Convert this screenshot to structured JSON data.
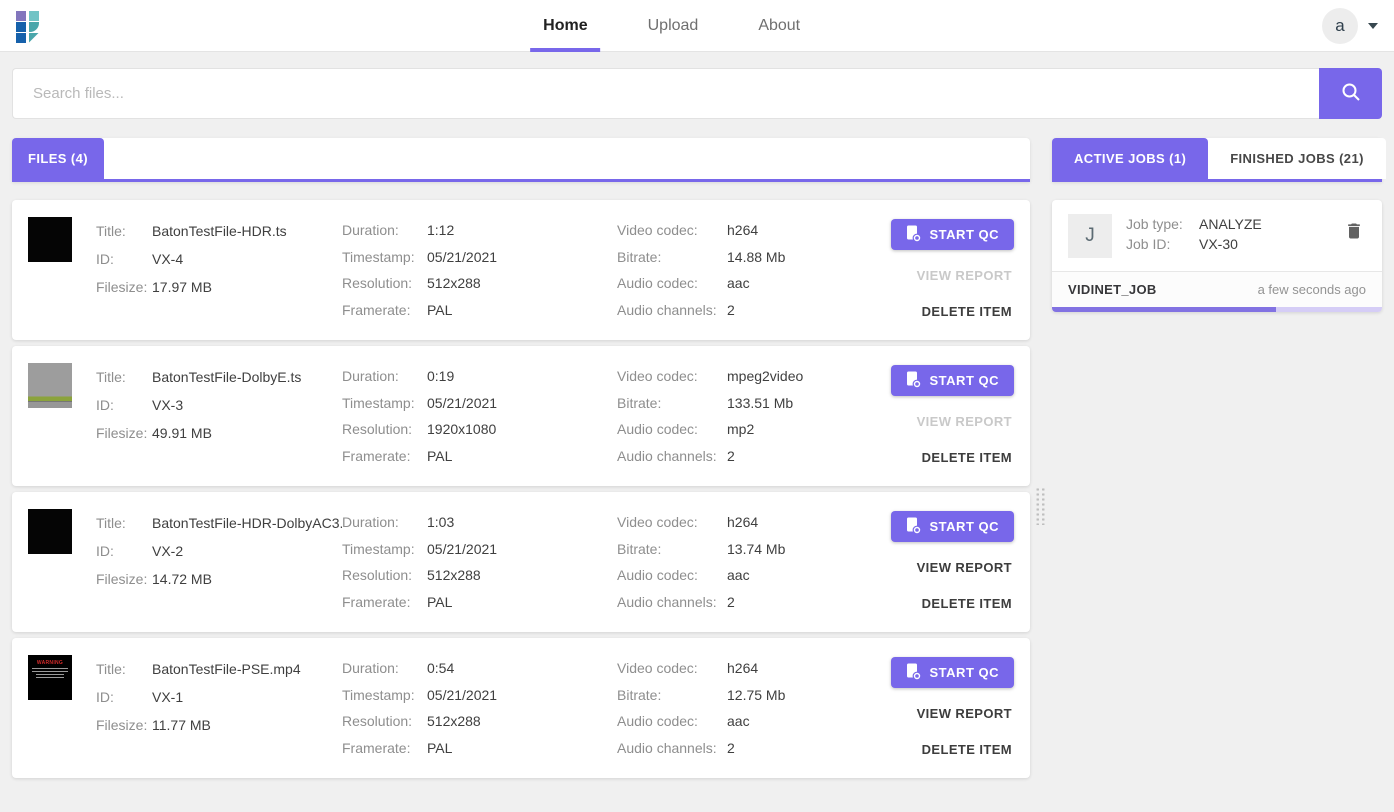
{
  "header": {
    "nav": [
      {
        "label": "Home",
        "active": true
      },
      {
        "label": "Upload",
        "active": false
      },
      {
        "label": "About",
        "active": false
      }
    ],
    "avatar_letter": "a"
  },
  "search": {
    "placeholder": "Search files..."
  },
  "files_panel": {
    "tab_label": "FILES (4)",
    "field_labels": {
      "title": "Title:",
      "id": "ID:",
      "filesize": "Filesize:",
      "duration": "Duration:",
      "timestamp": "Timestamp:",
      "resolution": "Resolution:",
      "framerate": "Framerate:",
      "video_codec": "Video codec:",
      "bitrate": "Bitrate:",
      "audio_codec": "Audio codec:",
      "audio_channels": "Audio channels:"
    },
    "actions": {
      "start_qc": "START QC",
      "view_report": "VIEW REPORT",
      "delete_item": "DELETE ITEM"
    },
    "warning_thumb_text": "WARNING",
    "items": [
      {
        "title": "BatonTestFile-HDR.ts",
        "id": "VX-4",
        "filesize": "17.97 MB",
        "duration": "1:12",
        "timestamp": "05/21/2021",
        "resolution": "512x288",
        "framerate": "PAL",
        "video_codec": "h264",
        "bitrate": "14.88 Mb",
        "audio_codec": "aac",
        "audio_channels": "2",
        "thumb": "black",
        "report_enabled": false
      },
      {
        "title": "BatonTestFile-DolbyE.ts",
        "id": "VX-3",
        "filesize": "49.91 MB",
        "duration": "0:19",
        "timestamp": "05/21/2021",
        "resolution": "1920x1080",
        "framerate": "PAL",
        "video_codec": "mpeg2video",
        "bitrate": "133.51 Mb",
        "audio_codec": "mp2",
        "audio_channels": "2",
        "thumb": "grey",
        "report_enabled": false
      },
      {
        "title": "BatonTestFile-HDR-DolbyAC3...",
        "id": "VX-2",
        "filesize": "14.72 MB",
        "duration": "1:03",
        "timestamp": "05/21/2021",
        "resolution": "512x288",
        "framerate": "PAL",
        "video_codec": "h264",
        "bitrate": "13.74 Mb",
        "audio_codec": "aac",
        "audio_channels": "2",
        "thumb": "black",
        "report_enabled": true
      },
      {
        "title": "BatonTestFile-PSE.mp4",
        "id": "VX-1",
        "filesize": "11.77 MB",
        "duration": "0:54",
        "timestamp": "05/21/2021",
        "resolution": "512x288",
        "framerate": "PAL",
        "video_codec": "h264",
        "bitrate": "12.75 Mb",
        "audio_codec": "aac",
        "audio_channels": "2",
        "thumb": "warning",
        "report_enabled": true
      }
    ]
  },
  "jobs_panel": {
    "tabs": [
      {
        "label": "ACTIVE JOBS (1)",
        "active": true
      },
      {
        "label": "FINISHED JOBS (21)",
        "active": false
      }
    ],
    "job": {
      "avatar_letter": "J",
      "type_label": "Job type:",
      "type_value": "ANALYZE",
      "id_label": "Job ID:",
      "id_value": "VX-30",
      "name": "VIDINET_JOB",
      "time_ago": "a few seconds ago",
      "progress_percent": 68
    }
  },
  "colors": {
    "accent": "#7867ea",
    "progress_fill": "#8272e2",
    "progress_track": "#d5cdf6"
  }
}
